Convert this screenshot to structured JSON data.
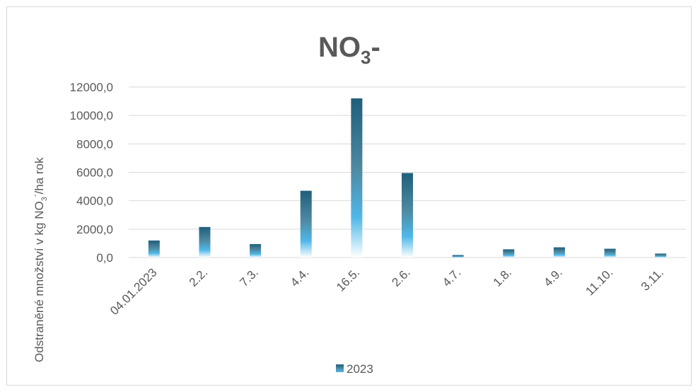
{
  "chart_data": {
    "type": "bar",
    "title": {
      "main": "NO",
      "sub": "3",
      "suffix": "-"
    },
    "ylabel": {
      "before": "Odstraněné množství v kg NO",
      "sub": "3",
      "sup": "-",
      "after": "/ha rok"
    },
    "categories": [
      "04.01.2023",
      "2.2.",
      "7.3.",
      "4.4.",
      "16.5.",
      "2.6.",
      "4.7.",
      "1.8.",
      "4.9.",
      "11.10.",
      "3.11."
    ],
    "series": [
      {
        "name": "2023",
        "values": [
          1200,
          2150,
          950,
          4700,
          11200,
          5950,
          180,
          580,
          720,
          620,
          280
        ]
      }
    ],
    "ylim": [
      0,
      12000
    ],
    "yticks": [
      "0,0",
      "2000,0",
      "4000,0",
      "6000,0",
      "8000,0",
      "10000,0",
      "12000,0"
    ],
    "ytick_values": [
      0,
      2000,
      4000,
      6000,
      8000,
      10000,
      12000
    ],
    "grid": true,
    "legend": "bottom",
    "colors": {
      "bar_dark": "#1f5f7a",
      "bar_mid": "#4f8aa3",
      "bar_light": "#4fb8e8",
      "bar_fade": "#ffffff",
      "grid": "#d9d9d9",
      "text": "#595959"
    }
  }
}
